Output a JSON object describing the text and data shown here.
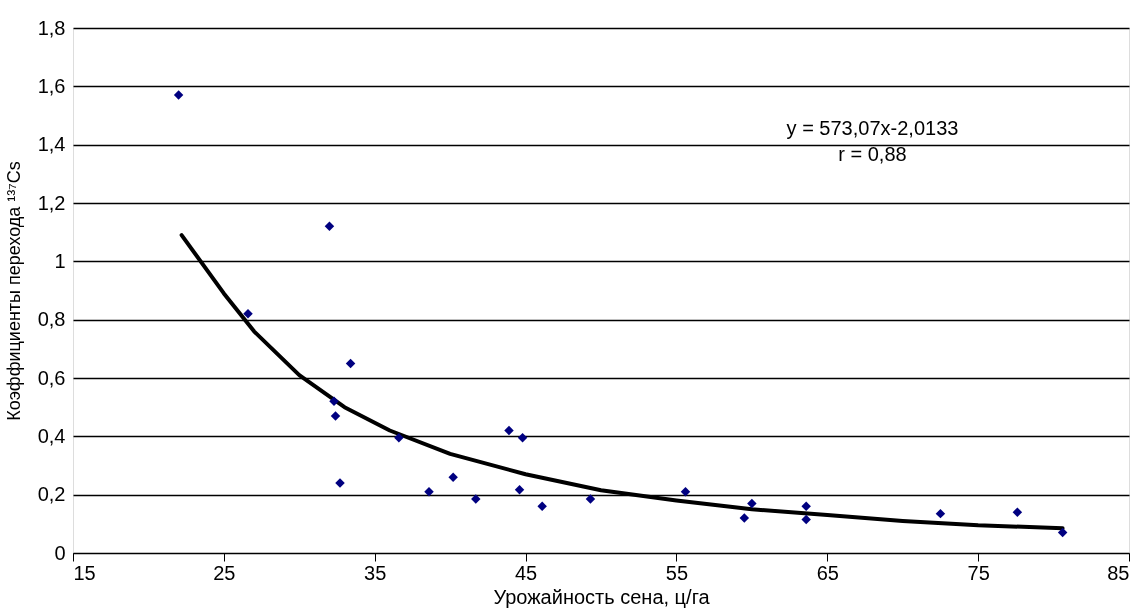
{
  "chart_data": {
    "type": "scatter",
    "xlabel": "Урожайность сена, ц/га",
    "ylabel": "Коэффициенты перехода ¹³⁷Cs",
    "xlim": [
      15,
      85
    ],
    "xticks": [
      15,
      25,
      35,
      45,
      55,
      65,
      75,
      85
    ],
    "ylim": [
      0,
      1.8
    ],
    "yticks": [
      0,
      {
        "value": 0.2,
        "label": "0,2"
      },
      {
        "value": 0.4,
        "label": "0,4"
      },
      {
        "value": 0.6,
        "label": "0,6"
      },
      {
        "value": 0.8,
        "label": "0,8"
      },
      1,
      {
        "value": 1.2,
        "label": "1,2"
      },
      {
        "value": 1.4,
        "label": "1,4"
      },
      {
        "value": 1.6,
        "label": "1,6"
      },
      {
        "value": 1.8,
        "label": "1,8"
      }
    ],
    "grid": "y",
    "marker": "diamond",
    "annotations": [
      "y = 573,07x-2,0133",
      "r = 0,88"
    ],
    "series": [
      {
        "color": "#000080",
        "x": [
          22.0,
          26.6,
          32.0,
          32.3,
          32.4,
          33.4,
          32.7,
          36.6,
          38.6,
          40.2,
          41.7,
          43.9,
          44.8,
          44.6,
          46.1,
          49.3,
          55.6,
          59.5,
          60.0,
          63.6,
          63.6,
          72.5,
          77.6,
          80.6
        ],
        "values": [
          1.57,
          0.82,
          1.12,
          0.52,
          0.47,
          0.65,
          0.24,
          0.395,
          0.21,
          0.26,
          0.185,
          0.42,
          0.395,
          0.217,
          0.16,
          0.185,
          0.21,
          0.12,
          0.17,
          0.16,
          0.115,
          0.135,
          0.14,
          0.07
        ]
      },
      {
        "type": "line",
        "color": "#000000",
        "line_style": "solid",
        "marker": "none",
        "x": [
          22.2,
          25,
          27,
          30,
          33,
          36,
          40,
          45,
          50,
          55,
          60,
          65,
          70,
          75,
          80.6
        ],
        "values": [
          1.09,
          0.89,
          0.76,
          0.61,
          0.5,
          0.42,
          0.34,
          0.27,
          0.215,
          0.18,
          0.15,
          0.13,
          0.11,
          0.095,
          0.085
        ]
      }
    ]
  }
}
